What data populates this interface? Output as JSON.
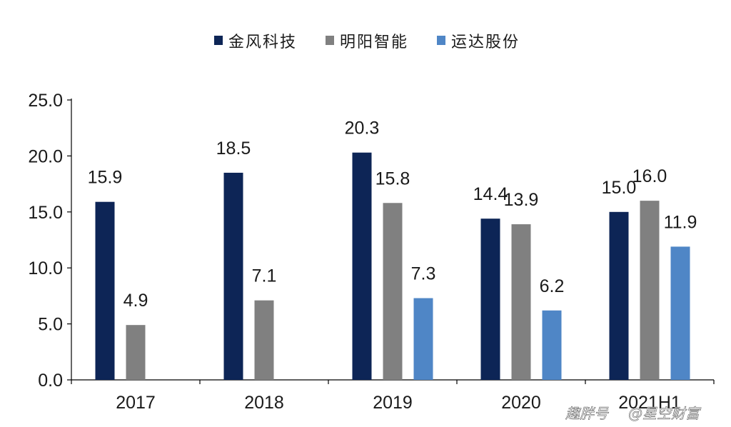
{
  "chart_data": {
    "type": "bar",
    "categories": [
      "2017",
      "2018",
      "2019",
      "2020",
      "2021H1"
    ],
    "series": [
      {
        "name": "金风科技",
        "color": "#0d2556",
        "values": [
          15.9,
          18.5,
          20.3,
          14.4,
          15.0
        ]
      },
      {
        "name": "明阳智能",
        "color": "#808080",
        "values": [
          4.9,
          7.1,
          15.8,
          13.9,
          16.0
        ]
      },
      {
        "name": "运达股份",
        "color": "#4f86c6",
        "values": [
          null,
          null,
          7.3,
          6.2,
          11.9
        ]
      }
    ],
    "data_labels": [
      [
        "15.9",
        "18.5",
        "20.3",
        "14.4",
        "15.0"
      ],
      [
        "4.9",
        "7.1",
        "15.8",
        "13.9",
        "16.0"
      ],
      [
        null,
        null,
        "7.3",
        "6.2",
        "11.9"
      ]
    ],
    "y_ticks": [
      "0.0",
      "5.0",
      "10.0",
      "15.0",
      "20.0",
      "25.0"
    ],
    "ylim": [
      0,
      25
    ],
    "legend_position": "top-center",
    "grid": false,
    "title": "",
    "xlabel": "",
    "ylabel": ""
  },
  "watermark": {
    "text_left": "趣胖号",
    "text_right": "@星空财富"
  }
}
